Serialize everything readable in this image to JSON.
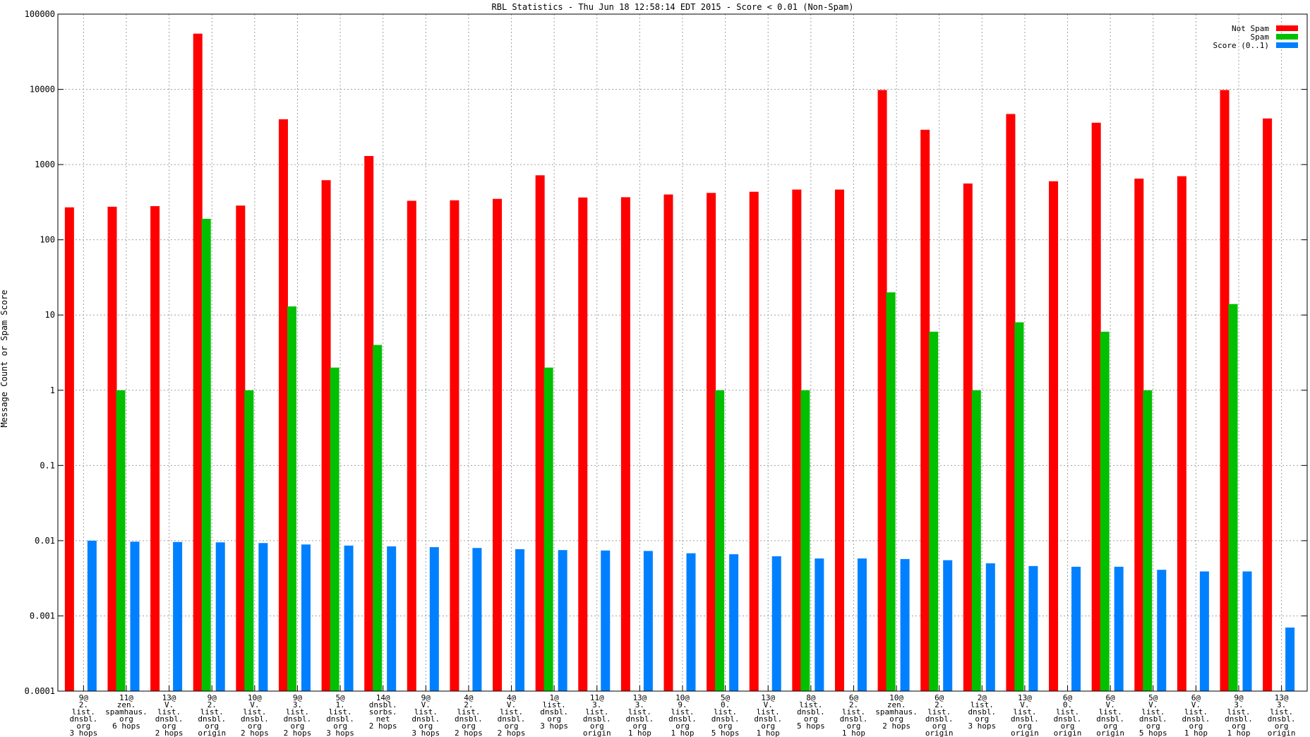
{
  "chart_data": {
    "type": "bar",
    "title": "RBL Statistics - Thu Jun 18 12:58:14 EDT 2015 - Score < 0.01 (Non-Spam)",
    "xlabel": "",
    "ylabel": "Message Count or Spam Score",
    "yscale": "log",
    "ylim": [
      0.0001,
      100000
    ],
    "grid": true,
    "legend_position": "top-right",
    "y_ticks": [
      "0.0001",
      "0.001",
      "0.01",
      "0.1",
      "1",
      "10",
      "100",
      "1000",
      "10000",
      "100000"
    ],
    "categories": [
      [
        "9@",
        "2.",
        "list.",
        "dnsbl.",
        "org",
        "3 hops"
      ],
      [
        "11@",
        "zen.",
        "spamhaus.",
        "org",
        "6 hops"
      ],
      [
        "13@",
        "V.",
        "list.",
        "dnsbl.",
        "org",
        "2 hops"
      ],
      [
        "9@",
        "2.",
        "list.",
        "dnsbl.",
        "org",
        "origin"
      ],
      [
        "10@",
        "V.",
        "list.",
        "dnsbl.",
        "org",
        "2 hops"
      ],
      [
        "9@",
        "3.",
        "list.",
        "dnsbl.",
        "org",
        "2 hops"
      ],
      [
        "5@",
        "1.",
        "list.",
        "dnsbl.",
        "org",
        "3 hops"
      ],
      [
        "14@",
        "dnsbl.",
        "sorbs.",
        "net",
        "2 hops"
      ],
      [
        "9@",
        "V.",
        "list.",
        "dnsbl.",
        "org",
        "3 hops"
      ],
      [
        "4@",
        "2.",
        "list.",
        "dnsbl.",
        "org",
        "2 hops"
      ],
      [
        "4@",
        "V.",
        "list.",
        "dnsbl.",
        "org",
        "2 hops"
      ],
      [
        "1@",
        "list.",
        "dnsbl.",
        "org",
        "3 hops"
      ],
      [
        "11@",
        "3.",
        "list.",
        "dnsbl.",
        "org",
        "origin"
      ],
      [
        "13@",
        "3.",
        "list.",
        "dnsbl.",
        "org",
        "1 hop"
      ],
      [
        "10@",
        "9.",
        "list.",
        "dnsbl.",
        "org",
        "1 hop"
      ],
      [
        "5@",
        "0.",
        "list.",
        "dnsbl.",
        "org",
        "5 hops"
      ],
      [
        "13@",
        "V.",
        "list.",
        "dnsbl.",
        "org",
        "1 hop"
      ],
      [
        "8@",
        "list.",
        "dnsbl.",
        "org",
        "5 hops"
      ],
      [
        "6@",
        "2.",
        "list.",
        "dnsbl.",
        "org",
        "1 hop"
      ],
      [
        "10@",
        "zen.",
        "spamhaus.",
        "org",
        "2 hops"
      ],
      [
        "6@",
        "2.",
        "list.",
        "dnsbl.",
        "org",
        "origin"
      ],
      [
        "2@",
        "list.",
        "dnsbl.",
        "org",
        "3 hops"
      ],
      [
        "13@",
        "V.",
        "list.",
        "dnsbl.",
        "org",
        "origin"
      ],
      [
        "6@",
        "0.",
        "list.",
        "dnsbl.",
        "org",
        "origin"
      ],
      [
        "6@",
        "V.",
        "list.",
        "dnsbl.",
        "org",
        "origin"
      ],
      [
        "5@",
        "V.",
        "list.",
        "dnsbl.",
        "org",
        "5 hops"
      ],
      [
        "6@",
        "V.",
        "list.",
        "dnsbl.",
        "org",
        "1 hop"
      ],
      [
        "9@",
        "3.",
        "list.",
        "dnsbl.",
        "org",
        "1 hop"
      ],
      [
        "13@",
        "3.",
        "list.",
        "dnsbl.",
        "org",
        "origin"
      ]
    ],
    "series": [
      {
        "name": "Not Spam",
        "color": "#ff0000",
        "values": [
          270,
          275,
          280,
          55000,
          285,
          4000,
          620,
          1300,
          330,
          335,
          350,
          720,
          365,
          368,
          400,
          420,
          435,
          465,
          465,
          9800,
          2900,
          560,
          4700,
          600,
          3600,
          650,
          700,
          9800,
          4100
        ]
      },
      {
        "name": "Spam",
        "color": "#00c000",
        "values": [
          null,
          1,
          null,
          190,
          1,
          13,
          2,
          4,
          null,
          null,
          null,
          2,
          null,
          null,
          null,
          1,
          null,
          1,
          null,
          20,
          6,
          1,
          8,
          null,
          6,
          1,
          null,
          14,
          null
        ]
      },
      {
        "name": "Score (0..1)",
        "color": "#0080ff",
        "values": [
          0.01,
          0.0097,
          0.0096,
          0.0095,
          0.0093,
          0.0089,
          0.0086,
          0.0084,
          0.0082,
          0.008,
          0.0077,
          0.0075,
          0.0074,
          0.0073,
          0.0068,
          0.0066,
          0.0062,
          0.0058,
          0.0058,
          0.0057,
          0.0055,
          0.005,
          0.0046,
          0.0045,
          0.0045,
          0.0041,
          0.0039,
          0.0039,
          0.0007
        ]
      }
    ]
  }
}
